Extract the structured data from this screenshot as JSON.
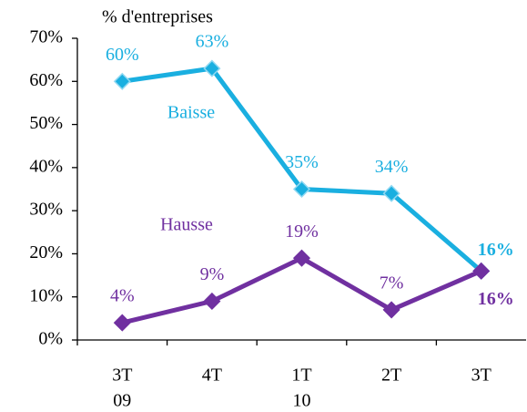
{
  "chart_data": {
    "type": "line",
    "y_axis_label": "% d'entreprises",
    "categories": [
      [
        "3T",
        "09"
      ],
      [
        "4T"
      ],
      [
        "1T",
        "10"
      ],
      [
        "2T"
      ],
      [
        "3T"
      ]
    ],
    "series": [
      {
        "name": "Baisse",
        "color": "#1aafe0",
        "values": [
          60,
          63,
          35,
          34,
          16
        ],
        "value_labels": [
          "60%",
          "63%",
          "35%",
          "34%",
          "16%"
        ]
      },
      {
        "name": "Hausse",
        "color": "#7030a0",
        "values": [
          4,
          9,
          19,
          7,
          16
        ],
        "value_labels": [
          "4%",
          "9%",
          "19%",
          "7%",
          "16%"
        ]
      }
    ],
    "ylim": [
      0,
      70
    ],
    "yticks": [
      {
        "value": 0,
        "label": "0%"
      },
      {
        "value": 10,
        "label": "10%"
      },
      {
        "value": 20,
        "label": "20%"
      },
      {
        "value": 30,
        "label": "30%"
      },
      {
        "value": 40,
        "label": "40%"
      },
      {
        "value": 50,
        "label": "50%"
      },
      {
        "value": 60,
        "label": "60%"
      },
      {
        "value": 70,
        "label": "70%"
      }
    ]
  }
}
